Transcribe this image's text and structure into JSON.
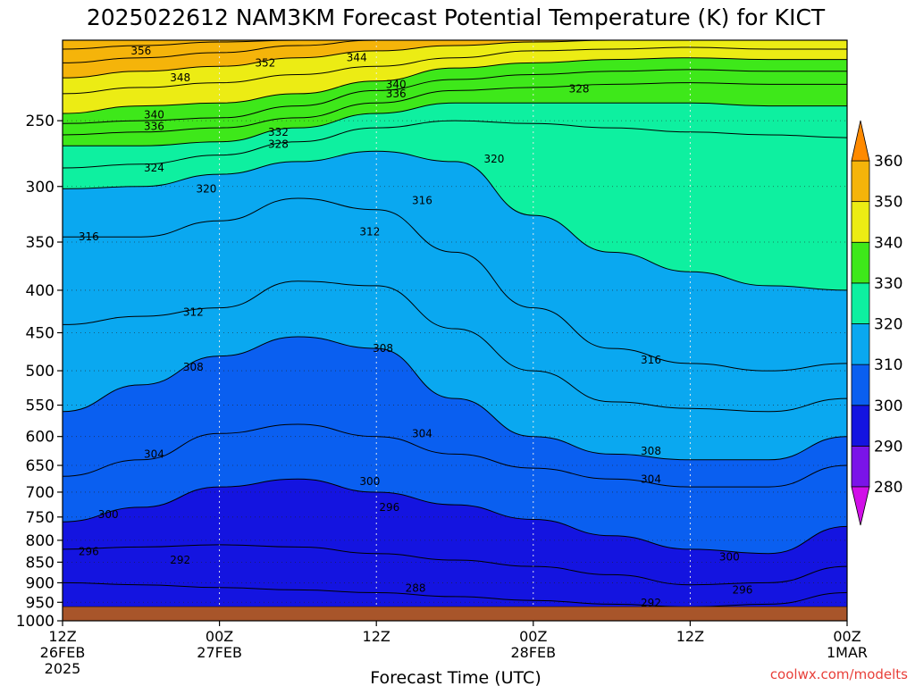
{
  "chart_data": {
    "type": "heatmap",
    "title": "2025022612 NAM3KM Forecast Potential Temperature (K) for KICT",
    "xlabel": "Forecast Time (UTC)",
    "ylabel": "",
    "credit": "coolwx.com/modelts",
    "y_scale": "log",
    "y_reversed": true,
    "ylim": [
      1000,
      200
    ],
    "y_ticks": [
      1000,
      950,
      900,
      850,
      800,
      750,
      700,
      650,
      600,
      550,
      500,
      450,
      400,
      350,
      300,
      250
    ],
    "x_ticks": [
      {
        "hour": 0,
        "line1": "12Z",
        "line2": "26FEB",
        "line3": "2025"
      },
      {
        "hour": 12,
        "line1": "00Z",
        "line2": "27FEB",
        "line3": ""
      },
      {
        "hour": 24,
        "line1": "12Z",
        "line2": "",
        "line3": ""
      },
      {
        "hour": 36,
        "line1": "00Z",
        "line2": "28FEB",
        "line3": ""
      },
      {
        "hour": 48,
        "line1": "12Z",
        "line2": "",
        "line3": ""
      },
      {
        "hour": 60,
        "line1": "00Z",
        "line2": "1MAR",
        "line3": ""
      }
    ],
    "xlim": [
      0,
      60
    ],
    "surface_pressure": 962,
    "colorbar": {
      "levels": [
        280,
        290,
        300,
        310,
        320,
        330,
        340,
        350,
        360
      ],
      "colors": [
        "#d10fe8",
        "#7a14e8",
        "#1414e0",
        "#0a5ff0",
        "#0aa8f0",
        "#0ef0a0",
        "#3ee81a",
        "#ecec14",
        "#f5b40a",
        "#ff8a00"
      ],
      "under_color": "#d10fe8",
      "over_color": "#ff8a00"
    },
    "isentrope_pressures": {
      "hours": [
        0,
        6,
        12,
        18,
        24,
        30,
        36,
        42,
        48,
        54,
        60
      ],
      "lines": [
        {
          "theta": 288,
          "p": [
            962,
            962,
            962,
            962,
            962,
            962,
            962,
            962,
            962,
            962,
            962
          ]
        },
        {
          "theta": 292,
          "p": [
            900,
            905,
            912,
            918,
            925,
            935,
            945,
            955,
            962,
            955,
            925
          ]
        },
        {
          "theta": 296,
          "p": [
            820,
            815,
            810,
            815,
            830,
            845,
            860,
            880,
            905,
            900,
            860
          ]
        },
        {
          "theta": 300,
          "p": [
            760,
            730,
            690,
            675,
            700,
            725,
            755,
            790,
            820,
            830,
            770
          ]
        },
        {
          "theta": 304,
          "p": [
            670,
            640,
            595,
            580,
            600,
            630,
            655,
            675,
            690,
            690,
            650
          ]
        },
        {
          "theta": 308,
          "p": [
            560,
            520,
            480,
            455,
            470,
            540,
            600,
            630,
            640,
            640,
            600
          ]
        },
        {
          "theta": 312,
          "p": [
            440,
            430,
            420,
            390,
            395,
            445,
            500,
            545,
            555,
            560,
            540
          ]
        },
        {
          "theta": 316,
          "p": [
            345,
            345,
            330,
            310,
            320,
            360,
            420,
            470,
            490,
            500,
            490
          ]
        },
        {
          "theta": 320,
          "p": [
            302,
            300,
            290,
            280,
            272,
            280,
            325,
            360,
            380,
            395,
            400
          ]
        },
        {
          "theta": 324,
          "p": [
            285,
            282,
            275,
            265,
            255,
            250,
            252,
            255,
            258,
            260,
            262
          ]
        },
        {
          "theta": 328,
          "p": [
            268,
            268,
            265,
            255,
            245,
            238,
            238,
            238,
            238,
            240,
            240
          ]
        },
        {
          "theta": 332,
          "p": [
            260,
            258,
            255,
            248,
            238,
            230,
            228,
            226,
            225,
            226,
            226
          ]
        },
        {
          "theta": 336,
          "p": [
            252,
            250,
            248,
            240,
            230,
            223,
            220,
            218,
            217,
            218,
            218
          ]
        },
        {
          "theta": 340,
          "p": [
            245,
            240,
            238,
            232,
            224,
            216,
            213,
            211,
            210,
            211,
            211
          ]
        },
        {
          "theta": 344,
          "p": [
            232,
            228,
            225,
            220,
            215,
            210,
            206,
            205,
            204,
            205,
            205
          ]
        },
        {
          "theta": 348,
          "p": [
            222,
            218,
            215,
            210,
            206,
            203,
            201,
            200,
            200,
            200,
            200
          ]
        },
        {
          "theta": 352,
          "p": [
            213,
            210,
            207,
            203,
            200,
            200,
            200,
            200,
            200,
            200,
            200
          ]
        },
        {
          "theta": 356,
          "p": [
            205,
            203,
            201,
            200,
            200,
            200,
            200,
            200,
            200,
            200,
            200
          ]
        }
      ]
    },
    "contour_labels": [
      {
        "text": "356",
        "hour": 6,
        "p": 206
      },
      {
        "text": "352",
        "hour": 15.5,
        "p": 213
      },
      {
        "text": "344",
        "hour": 22.5,
        "p": 210
      },
      {
        "text": "348",
        "hour": 9,
        "p": 222
      },
      {
        "text": "340",
        "hour": 25.5,
        "p": 226
      },
      {
        "text": "336",
        "hour": 25.5,
        "p": 232
      },
      {
        "text": "328",
        "hour": 39.5,
        "p": 229
      },
      {
        "text": "340",
        "hour": 7,
        "p": 246
      },
      {
        "text": "336",
        "hour": 7,
        "p": 254
      },
      {
        "text": "332",
        "hour": 16.5,
        "p": 258
      },
      {
        "text": "328",
        "hour": 16.5,
        "p": 267
      },
      {
        "text": "324",
        "hour": 7,
        "p": 285
      },
      {
        "text": "320",
        "hour": 33,
        "p": 278
      },
      {
        "text": "320",
        "hour": 11,
        "p": 302
      },
      {
        "text": "316",
        "hour": 27.5,
        "p": 312
      },
      {
        "text": "316",
        "hour": 2,
        "p": 345
      },
      {
        "text": "312",
        "hour": 23.5,
        "p": 340
      },
      {
        "text": "312",
        "hour": 10,
        "p": 425
      },
      {
        "text": "308",
        "hour": 24.5,
        "p": 470
      },
      {
        "text": "316",
        "hour": 45,
        "p": 485
      },
      {
        "text": "308",
        "hour": 10,
        "p": 495
      },
      {
        "text": "304",
        "hour": 27.5,
        "p": 595
      },
      {
        "text": "308",
        "hour": 45,
        "p": 625
      },
      {
        "text": "304",
        "hour": 7,
        "p": 630
      },
      {
        "text": "300",
        "hour": 23.5,
        "p": 680
      },
      {
        "text": "304",
        "hour": 45,
        "p": 675
      },
      {
        "text": "296",
        "hour": 25,
        "p": 730
      },
      {
        "text": "300",
        "hour": 3.5,
        "p": 745
      },
      {
        "text": "296",
        "hour": 2,
        "p": 825
      },
      {
        "text": "292",
        "hour": 9,
        "p": 845
      },
      {
        "text": "300",
        "hour": 51,
        "p": 838
      },
      {
        "text": "288",
        "hour": 27,
        "p": 914
      },
      {
        "text": "296",
        "hour": 52,
        "p": 918
      },
      {
        "text": "292",
        "hour": 45,
        "p": 952
      }
    ]
  }
}
